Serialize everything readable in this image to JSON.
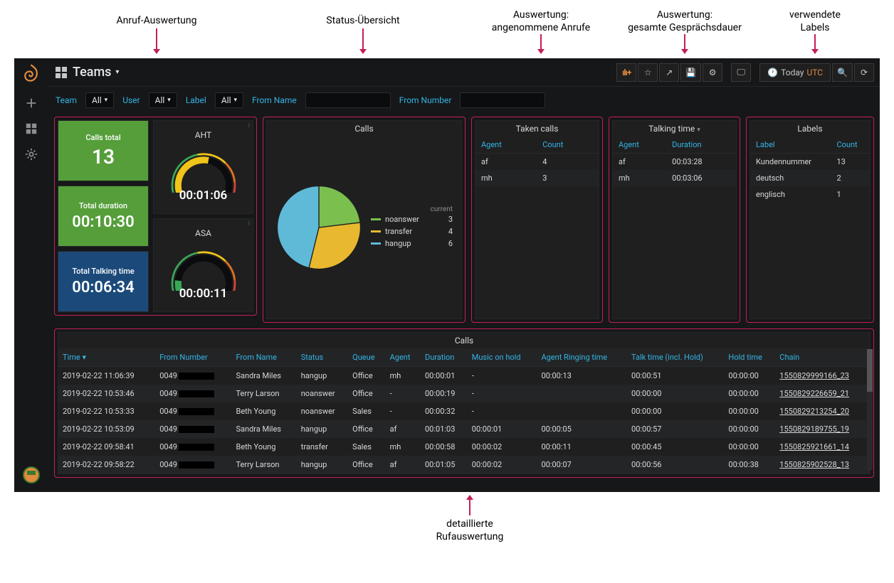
{
  "annotations": {
    "call_eval": "Anruf-Auswertung",
    "status_overview": "Status-Übersicht",
    "taken_calls": "Auswertung:\nangenommene Anrufe",
    "talking_time": "Auswertung:\ngesamte Gesprächsdauer",
    "labels": "verwendete\nLabels",
    "detail": "detaillierte\nRufauswertung"
  },
  "dashboard": {
    "title": "Teams"
  },
  "toolbar": {
    "add_panel_icon": "ılı+",
    "time_range": "Today",
    "timezone": "UTC"
  },
  "filters": {
    "team_label": "Team",
    "team_value": "All",
    "user_label": "User",
    "user_value": "All",
    "label_label": "Label",
    "label_value": "All",
    "from_name_label": "From Name",
    "from_name_value": "",
    "from_number_label": "From Number",
    "from_number_value": ""
  },
  "stats": {
    "calls_total": {
      "label": "Calls total",
      "value": "13",
      "bg": "#559e3a"
    },
    "total_duration": {
      "label": "Total duration",
      "value": "00:10:30",
      "bg": "#559e3a"
    },
    "total_talking_time": {
      "label": "Total Talking time",
      "value": "00:06:34",
      "bg": "#1b4a7a"
    },
    "aht": {
      "label": "AHT",
      "value": "00:01:06",
      "fill_pct": 55,
      "colors": [
        "#3aa757",
        "#f0c419",
        "#e8711f",
        "#d9433b"
      ]
    },
    "asa": {
      "label": "ASA",
      "value": "00:00:11",
      "fill_pct": 12,
      "colors": [
        "#3aa757",
        "#f0c419",
        "#e8711f",
        "#d9433b"
      ]
    }
  },
  "calls_pie": {
    "title": "Calls",
    "legend_header": "current",
    "slices": [
      {
        "name": "noanswer",
        "value": 3,
        "color": "#7bbf4e"
      },
      {
        "name": "transfer",
        "value": 4,
        "color": "#e8b92e"
      },
      {
        "name": "hangup",
        "value": 6,
        "color": "#5fbad8"
      }
    ],
    "total": 13
  },
  "taken_calls_panel": {
    "title": "Taken calls",
    "columns": [
      "Agent",
      "Count"
    ],
    "rows": [
      [
        "af",
        "4"
      ],
      [
        "mh",
        "3"
      ]
    ]
  },
  "talking_time_panel": {
    "title": "Talking time",
    "columns": [
      "Agent",
      "Duration"
    ],
    "rows": [
      [
        "af",
        "00:03:28"
      ],
      [
        "mh",
        "00:03:06"
      ]
    ]
  },
  "labels_panel": {
    "title": "Labels",
    "columns": [
      "Label",
      "Count"
    ],
    "rows": [
      [
        "Kundennummer",
        "13"
      ],
      [
        "deutsch",
        "2"
      ],
      [
        "englisch",
        "1"
      ]
    ]
  },
  "detail_table": {
    "title": "Calls",
    "columns": [
      "Time",
      "From Number",
      "From Name",
      "Status",
      "Queue",
      "Agent",
      "Duration",
      "Music on hold",
      "Agent Ringing time",
      "Talk time (incl. Hold)",
      "Hold time",
      "Chain"
    ],
    "sort_col": 0,
    "rows": [
      [
        "2019-02-22 11:06:39",
        "0049",
        "Sandra Miles",
        "hangup",
        "Office",
        "mh",
        "00:00:01",
        "-",
        "00:00:13",
        "00:00:51",
        "00:00:00",
        "1550829999166_23"
      ],
      [
        "2019-02-22 10:53:46",
        "0049",
        "Terry Larson",
        "noanswer",
        "Office",
        "-",
        "00:00:19",
        "-",
        "",
        "00:00:00",
        "00:00:00",
        "1550829226659_21"
      ],
      [
        "2019-02-22 10:53:33",
        "0049",
        "Beth Young",
        "noanswer",
        "Sales",
        "-",
        "00:00:32",
        "-",
        "",
        "00:00:00",
        "00:00:00",
        "1550829213254_20"
      ],
      [
        "2019-02-22 10:53:09",
        "0049",
        "Sandra Miles",
        "hangup",
        "Office",
        "af",
        "00:01:03",
        "00:00:01",
        "00:00:05",
        "00:00:57",
        "00:00:00",
        "1550829189755_19"
      ],
      [
        "2019-02-22 09:58:41",
        "0049",
        "Beth Young",
        "transfer",
        "Sales",
        "mh",
        "00:00:58",
        "00:00:02",
        "00:00:11",
        "00:00:45",
        "00:00:00",
        "1550825921661_14"
      ],
      [
        "2019-02-22 09:58:22",
        "0049",
        "Terry Larson",
        "hangup",
        "Office",
        "af",
        "00:01:05",
        "00:00:02",
        "00:00:07",
        "00:00:56",
        "00:00:38",
        "1550825902528_13"
      ]
    ]
  },
  "colors": {
    "accent": "#33b5e5",
    "red_border": "#c41e58",
    "panel_bg": "#1f1f20",
    "app_bg": "#161719"
  }
}
